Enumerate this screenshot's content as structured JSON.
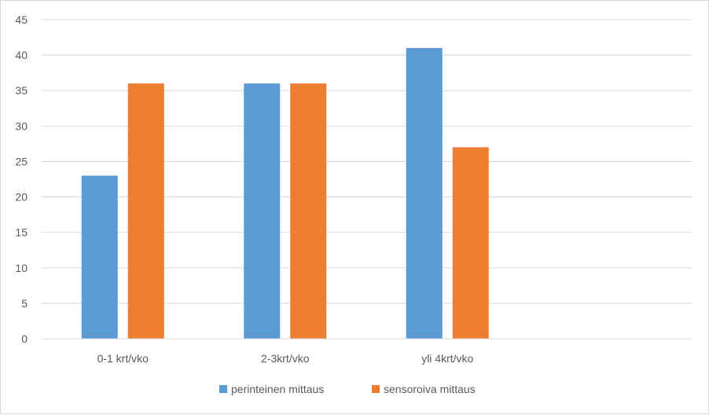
{
  "chart_data": {
    "type": "bar",
    "title": "",
    "xlabel": "",
    "ylabel": "",
    "categories": [
      "0-1 krt/vko",
      "2-3krt/vko",
      "yli 4krt/vko"
    ],
    "series": [
      {
        "name": "perinteinen mittaus",
        "color": "#5b9bd5",
        "values": [
          23,
          36,
          41
        ]
      },
      {
        "name": "sensoroiva mittaus",
        "color": "#ed7d31",
        "values": [
          36,
          36,
          27
        ]
      }
    ],
    "ylim": [
      0,
      45
    ],
    "yticks": [
      0,
      5,
      10,
      15,
      20,
      25,
      30,
      35,
      40,
      45
    ],
    "grid": true,
    "legend_position": "bottom"
  }
}
